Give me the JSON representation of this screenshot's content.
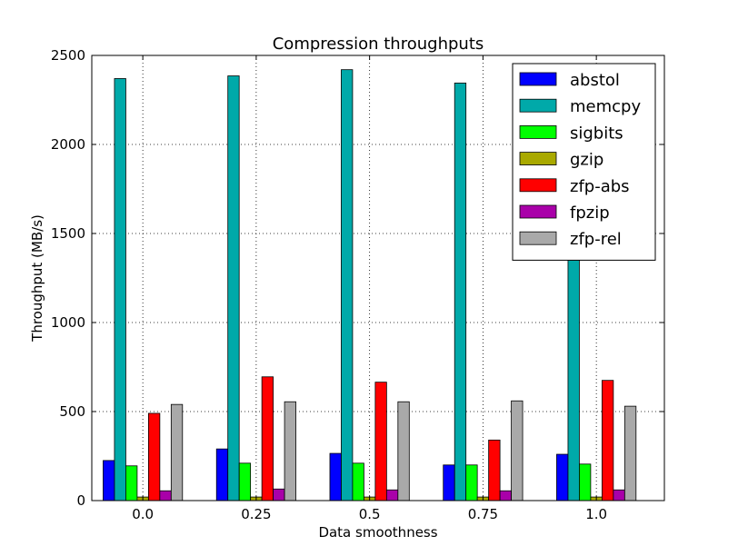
{
  "chart_data": {
    "type": "bar",
    "title": "Compression throughputs",
    "xlabel": "Data smoothness",
    "ylabel": "Throughput (MB/s)",
    "categories": [
      "0.0",
      "0.25",
      "0.5",
      "0.75",
      "1.0"
    ],
    "ylim": [
      0,
      2500
    ],
    "yticks": [
      "0",
      "500",
      "1000",
      "1500",
      "2000",
      "2500"
    ],
    "grid": true,
    "legend_position": "top-right",
    "series": [
      {
        "name": "abstol",
        "color": "#0000ff",
        "values": [
          225,
          290,
          265,
          200,
          260
        ]
      },
      {
        "name": "memcpy",
        "color": "#00a9a9",
        "values": [
          2370,
          2385,
          2420,
          2345,
          1520
        ]
      },
      {
        "name": "sigbits",
        "color": "#00ff00",
        "values": [
          195,
          210,
          210,
          200,
          205
        ]
      },
      {
        "name": "gzip",
        "color": "#a9a900",
        "values": [
          20,
          20,
          20,
          20,
          20
        ]
      },
      {
        "name": "zfp-abs",
        "color": "#ff0000",
        "values": [
          490,
          695,
          665,
          340,
          675
        ]
      },
      {
        "name": "fpzip",
        "color": "#a900a9",
        "values": [
          55,
          65,
          60,
          55,
          60
        ]
      },
      {
        "name": "zfp-rel",
        "color": "#a9a9a9",
        "values": [
          540,
          555,
          555,
          560,
          530
        ]
      }
    ]
  }
}
